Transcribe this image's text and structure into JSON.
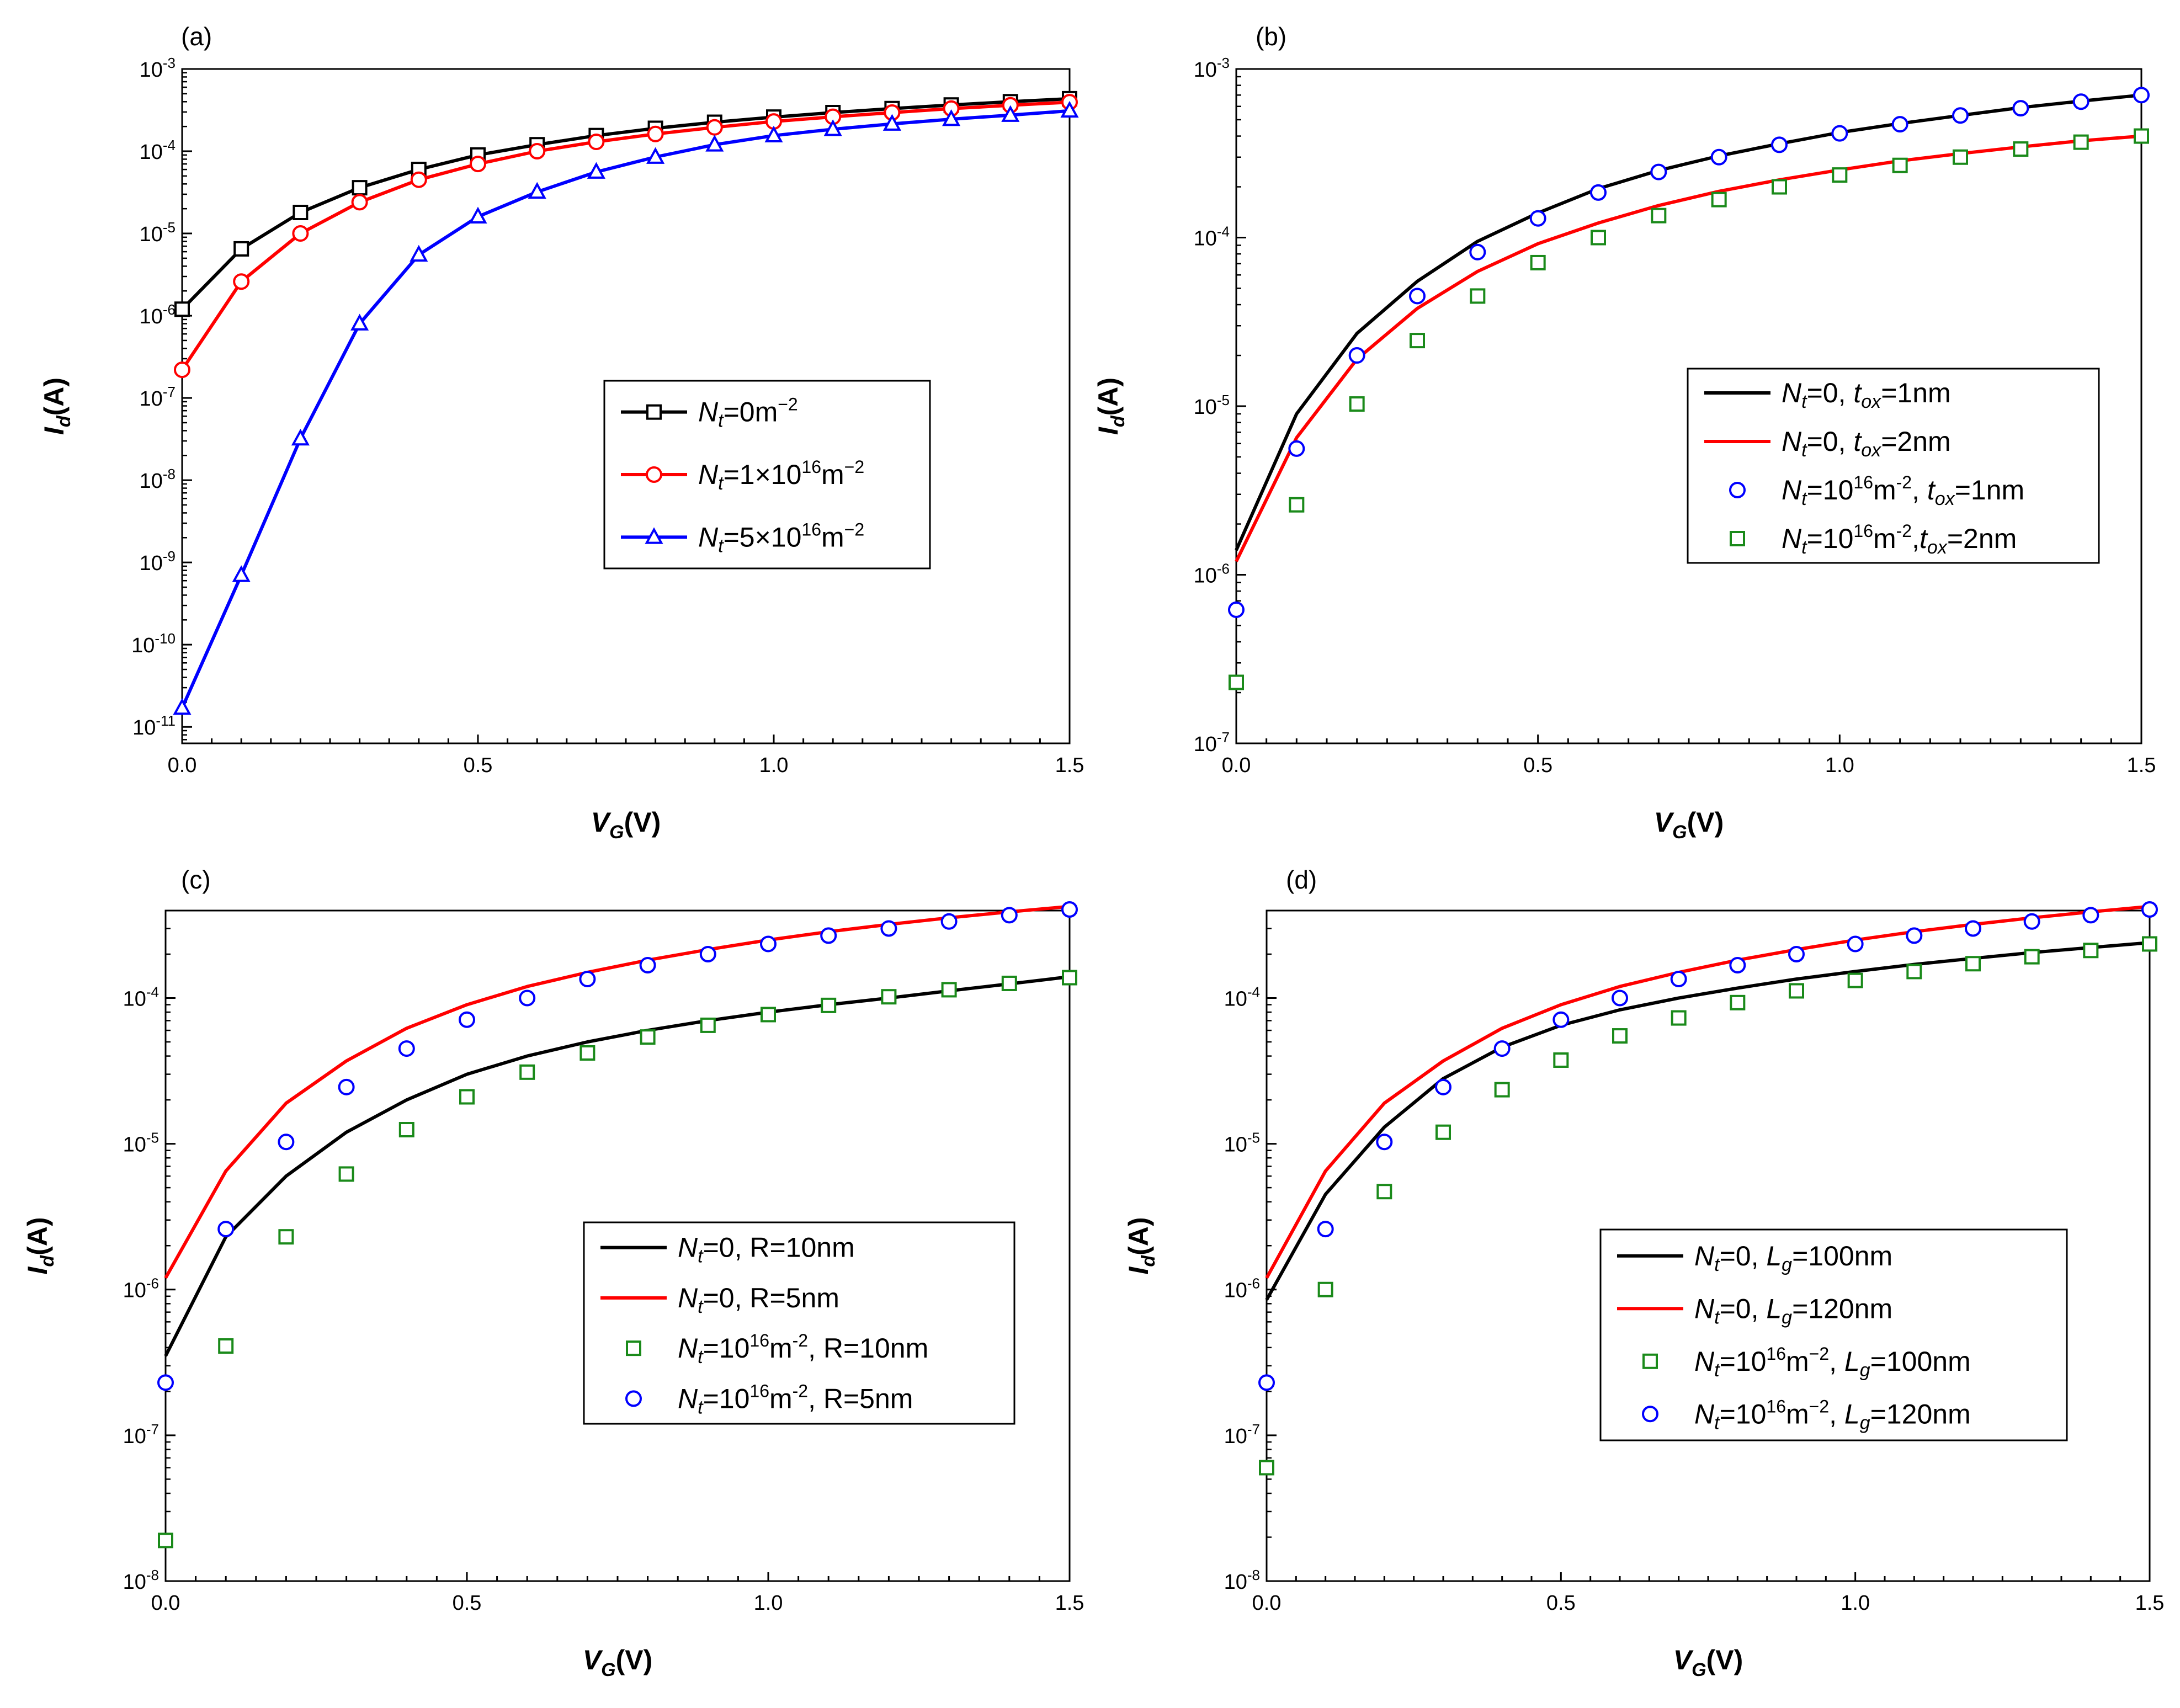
{
  "colors": {
    "black": "#000000",
    "red": "#ff0000",
    "blue": "#0000ff",
    "green": "#1a8a1a"
  },
  "chart_data": [
    {
      "type": "line",
      "panel_label": "(a)",
      "xlabel": "V",
      "xlabel_sub": "G",
      "xlabel_unit": "(V)",
      "ylabel": "I",
      "ylabel_sub": "d",
      "ylabel_unit": "(A)",
      "yscale": "log",
      "xlim": [
        0,
        1.5
      ],
      "ylim_exp": [
        -11.2,
        -3
      ],
      "x_ticks": [
        "0.0",
        "0.5",
        "1.0",
        "1.5"
      ],
      "y_tick_exps": [
        "-11",
        "-10",
        "-9",
        "-8",
        "-7",
        "-6",
        "-5",
        "-4",
        "-3"
      ],
      "legend_position": "center-right",
      "x": [
        0,
        0.1,
        0.2,
        0.3,
        0.4,
        0.5,
        0.6,
        0.7,
        0.8,
        0.9,
        1.0,
        1.1,
        1.2,
        1.3,
        1.4,
        1.5
      ],
      "series": [
        {
          "name": "Nt=0m−2",
          "color": "#000000",
          "marker": "square",
          "line": true,
          "show_markers": true,
          "legend": {
            "pre": "N",
            "sub": "t",
            "eq": "=0m",
            "sup": "−2",
            "tail": ""
          },
          "values": [
            1.2e-06,
            6.5e-06,
            1.8e-05,
            3.6e-05,
            6e-05,
            9e-05,
            0.00012,
            0.000155,
            0.00019,
            0.000225,
            0.00026,
            0.000295,
            0.00033,
            0.000365,
            0.0004,
            0.000435
          ]
        },
        {
          "name": "Nt=1×1016m−2",
          "color": "#ff0000",
          "marker": "circle",
          "line": true,
          "show_markers": true,
          "legend": {
            "pre": "N",
            "sub": "t",
            "eq": "=1×10",
            "sup": "16",
            "tail": "m",
            "sup2": "−2"
          },
          "values": [
            2.2e-07,
            2.6e-06,
            1e-05,
            2.4e-05,
            4.5e-05,
            7e-05,
            0.0001,
            0.00013,
            0.000162,
            0.000195,
            0.00023,
            0.000262,
            0.000295,
            0.00033,
            0.000362,
            0.000395
          ]
        },
        {
          "name": "Nt=5×1016m−2",
          "color": "#0000ff",
          "marker": "triangle",
          "line": true,
          "show_markers": true,
          "legend": {
            "pre": "N",
            "sub": "t",
            "eq": "=5×10",
            "sup": "16",
            "tail": "m",
            "sup2": "−2"
          },
          "values": [
            1.7e-11,
            7e-10,
            3.2e-08,
            8e-07,
            5.5e-06,
            1.6e-05,
            3.2e-05,
            5.6e-05,
            8.5e-05,
            0.00012,
            0.000155,
            0.000185,
            0.000215,
            0.000245,
            0.000275,
            0.00031
          ]
        }
      ]
    },
    {
      "type": "line",
      "panel_label": "(b)",
      "xlabel": "V",
      "xlabel_sub": "G",
      "xlabel_unit": "(V)",
      "ylabel": "I",
      "ylabel_sub": "d",
      "ylabel_unit": "(A)",
      "yscale": "log",
      "xlim": [
        0,
        1.5
      ],
      "ylim_exp": [
        -7,
        -3
      ],
      "x_ticks": [
        "0.0",
        "0.5",
        "1.0",
        "1.5"
      ],
      "y_tick_exps": [
        "-7",
        "-6",
        "-5",
        "-4",
        "-3"
      ],
      "legend_position": "center-right",
      "x": [
        0,
        0.1,
        0.2,
        0.3,
        0.4,
        0.5,
        0.6,
        0.7,
        0.8,
        0.9,
        1.0,
        1.1,
        1.2,
        1.3,
        1.4,
        1.5
      ],
      "series": [
        {
          "name": "Nt=0, tox=1nm",
          "color": "#000000",
          "marker": "none",
          "line": true,
          "show_markers": false,
          "legend": {
            "pre": "N",
            "sub": "t",
            "eq": "=0, ",
            "pre2": "t",
            "sub2": "ox",
            "eq2": "=1nm"
          },
          "values": [
            1.4e-06,
            9e-06,
            2.7e-05,
            5.5e-05,
            9.5e-05,
            0.00014,
            0.000195,
            0.00025,
            0.000305,
            0.00036,
            0.00042,
            0.000475,
            0.00053,
            0.00059,
            0.000645,
            0.0007
          ]
        },
        {
          "name": "Nt=0, tox=2nm",
          "color": "#ff0000",
          "marker": "none",
          "line": true,
          "show_markers": false,
          "legend": {
            "pre": "N",
            "sub": "t",
            "eq": "=0, ",
            "pre2": "t",
            "sub2": "ox",
            "eq2": "=2nm"
          },
          "values": [
            1.2e-06,
            6.5e-06,
            1.9e-05,
            3.8e-05,
            6.3e-05,
            9.2e-05,
            0.000122,
            0.000155,
            0.000188,
            0.00022,
            0.000252,
            0.000285,
            0.000315,
            0.000345,
            0.000375,
            0.0004
          ]
        },
        {
          "name": "Nt=1016m−2, tox=1nm",
          "color": "#0000ff",
          "marker": "circle",
          "line": false,
          "show_markers": true,
          "legend": {
            "pre": "N",
            "sub": "t",
            "eq": "=10",
            "sup": "16",
            "tail": "m",
            "sup2": "-2",
            "tail2": ", ",
            "pre2": "t",
            "sub2": "ox",
            "eq2": "=1nm"
          },
          "values": [
            6.2e-07,
            5.6e-06,
            2e-05,
            4.5e-05,
            8.2e-05,
            0.00013,
            0.000185,
            0.000245,
            0.0003,
            0.000355,
            0.000415,
            0.00047,
            0.00053,
            0.000585,
            0.00064,
            0.0007
          ]
        },
        {
          "name": "Nt=1016m−2,tox=2nm",
          "color": "#1a8a1a",
          "marker": "square",
          "line": false,
          "show_markers": true,
          "legend": {
            "pre": "N",
            "sub": "t",
            "eq": "=10",
            "sup": "16",
            "tail": "m",
            "sup2": "-2",
            "tail2": ",",
            "pre2": "t",
            "sub2": "ox",
            "eq2": "=2nm"
          },
          "values": [
            2.3e-07,
            2.6e-06,
            1.03e-05,
            2.45e-05,
            4.5e-05,
            7.1e-05,
            0.0001,
            0.000135,
            0.000168,
            0.0002,
            0.000235,
            0.000268,
            0.0003,
            0.000335,
            0.000368,
            0.0004
          ]
        }
      ]
    },
    {
      "type": "line",
      "panel_label": "(c)",
      "xlabel": "V",
      "xlabel_sub": "G",
      "xlabel_unit": "(V)",
      "ylabel": "I",
      "ylabel_sub": "d",
      "ylabel_unit": "(A)",
      "yscale": "log",
      "xlim": [
        0,
        1.5
      ],
      "ylim_exp": [
        -8,
        -3.4
      ],
      "x_ticks": [
        "0.0",
        "0.5",
        "1.0",
        "1.5"
      ],
      "y_tick_exps": [
        "-8",
        "-7",
        "-6",
        "-5",
        "-4"
      ],
      "legend_position": "lower-right",
      "x": [
        0,
        0.1,
        0.2,
        0.3,
        0.4,
        0.5,
        0.6,
        0.7,
        0.8,
        0.9,
        1.0,
        1.1,
        1.2,
        1.3,
        1.4,
        1.5
      ],
      "series": [
        {
          "name": "Nt=0, R=10nm",
          "color": "#000000",
          "marker": "none",
          "line": true,
          "show_markers": false,
          "legend": {
            "pre": "N",
            "sub": "t",
            "eq": "=0, R=10nm"
          },
          "values": [
            3.5e-07,
            2.3e-06,
            6e-06,
            1.2e-05,
            2e-05,
            3e-05,
            4e-05,
            5e-05,
            6e-05,
            7e-05,
            8e-05,
            9e-05,
            0.0001,
            0.000112,
            0.000125,
            0.00014
          ]
        },
        {
          "name": "Nt=0, R=5nm",
          "color": "#ff0000",
          "marker": "none",
          "line": true,
          "show_markers": false,
          "legend": {
            "pre": "N",
            "sub": "t",
            "eq": "=0, R=5nm"
          },
          "values": [
            1.2e-06,
            6.5e-06,
            1.9e-05,
            3.7e-05,
            6.2e-05,
            9e-05,
            0.00012,
            0.00015,
            0.000182,
            0.000215,
            0.00025,
            0.000285,
            0.00032,
            0.000355,
            0.00039,
            0.000425
          ]
        },
        {
          "name": "Nt=1016m−2, R=10nm",
          "color": "#1a8a1a",
          "marker": "square",
          "line": false,
          "show_markers": true,
          "legend": {
            "pre": "N",
            "sub": "t",
            "eq": "=10",
            "sup": "16",
            "tail": "m",
            "sup2": "-2",
            "tail2": ", R=10nm"
          },
          "values": [
            1.9e-08,
            4.1e-07,
            2.3e-06,
            6.2e-06,
            1.25e-05,
            2.1e-05,
            3.1e-05,
            4.2e-05,
            5.4e-05,
            6.5e-05,
            7.7e-05,
            8.9e-05,
            0.000102,
            0.000114,
            0.000126,
            0.000138
          ]
        },
        {
          "name": "Nt=1016m−2, R=5nm",
          "color": "#0000ff",
          "marker": "circle",
          "line": false,
          "show_markers": true,
          "legend": {
            "pre": "N",
            "sub": "t",
            "eq": "=10",
            "sup": "16",
            "tail": "m",
            "sup2": "-2",
            "tail2": ", R=5nm"
          },
          "values": [
            2.3e-07,
            2.6e-06,
            1.03e-05,
            2.45e-05,
            4.5e-05,
            7.1e-05,
            0.0001,
            0.000135,
            0.000168,
            0.0002,
            0.000235,
            0.000268,
            0.0003,
            0.000335,
            0.00037,
            0.000405
          ]
        }
      ]
    },
    {
      "type": "line",
      "panel_label": "(d)",
      "xlabel": "V",
      "xlabel_sub": "G",
      "xlabel_unit": "(V)",
      "ylabel": "I",
      "ylabel_sub": "d",
      "ylabel_unit": "(A)",
      "yscale": "log",
      "xlim": [
        0,
        1.5
      ],
      "ylim_exp": [
        -8,
        -3.4
      ],
      "x_ticks": [
        "0.0",
        "0.5",
        "1.0",
        "1.5"
      ],
      "y_tick_exps": [
        "-8",
        "-7",
        "-6",
        "-5",
        "-4"
      ],
      "legend_position": "lower-right",
      "x": [
        0,
        0.1,
        0.2,
        0.3,
        0.4,
        0.5,
        0.6,
        0.7,
        0.8,
        0.9,
        1.0,
        1.1,
        1.2,
        1.3,
        1.4,
        1.5
      ],
      "series": [
        {
          "name": "Nt=0, Lg=100nm",
          "color": "#000000",
          "marker": "none",
          "line": true,
          "show_markers": false,
          "legend": {
            "pre": "N",
            "sub": "t",
            "eq": "=0, ",
            "pre2": "L",
            "sub2": "g",
            "eq2": "=100nm"
          },
          "values": [
            8.5e-07,
            4.5e-06,
            1.3e-05,
            2.8e-05,
            4.6e-05,
            6.5e-05,
            8.3e-05,
            0.0001,
            0.000117,
            0.000135,
            0.000152,
            0.00017,
            0.000187,
            0.000205,
            0.000222,
            0.00024
          ]
        },
        {
          "name": "Nt=0, Lg=120nm",
          "color": "#ff0000",
          "marker": "none",
          "line": true,
          "show_markers": false,
          "legend": {
            "pre": "N",
            "sub": "t",
            "eq": "=0, ",
            "pre2": "L",
            "sub2": "g",
            "eq2": "=120nm"
          },
          "values": [
            1.2e-06,
            6.5e-06,
            1.9e-05,
            3.7e-05,
            6.2e-05,
            9e-05,
            0.00012,
            0.00015,
            0.000182,
            0.000215,
            0.00025,
            0.000285,
            0.00032,
            0.000355,
            0.00039,
            0.000425
          ]
        },
        {
          "name": "Nt=1016m−2, Lg=100nm",
          "color": "#1a8a1a",
          "marker": "square",
          "line": false,
          "show_markers": true,
          "legend": {
            "pre": "N",
            "sub": "t",
            "eq": "=10",
            "sup": "16",
            "tail": "m",
            "sup2": "−2",
            "tail2": ", ",
            "pre2": "L",
            "sub2": "g",
            "eq2": "=100nm"
          },
          "values": [
            6e-08,
            1e-06,
            4.7e-06,
            1.2e-05,
            2.35e-05,
            3.75e-05,
            5.5e-05,
            7.3e-05,
            9.3e-05,
            0.000112,
            0.000132,
            0.000152,
            0.000172,
            0.000192,
            0.000212,
            0.000235
          ]
        },
        {
          "name": "Nt=1016m−2, Lg=120nm",
          "color": "#0000ff",
          "marker": "circle",
          "line": false,
          "show_markers": true,
          "legend": {
            "pre": "N",
            "sub": "t",
            "eq": "=10",
            "sup": "16",
            "tail": "m",
            "sup2": "−2",
            "tail2": ", ",
            "pre2": "L",
            "sub2": "g",
            "eq2": "=120nm"
          },
          "values": [
            2.3e-07,
            2.6e-06,
            1.03e-05,
            2.45e-05,
            4.5e-05,
            7.1e-05,
            0.0001,
            0.000135,
            0.000168,
            0.0002,
            0.000235,
            0.000268,
            0.0003,
            0.000335,
            0.00037,
            0.000405
          ]
        }
      ]
    }
  ]
}
